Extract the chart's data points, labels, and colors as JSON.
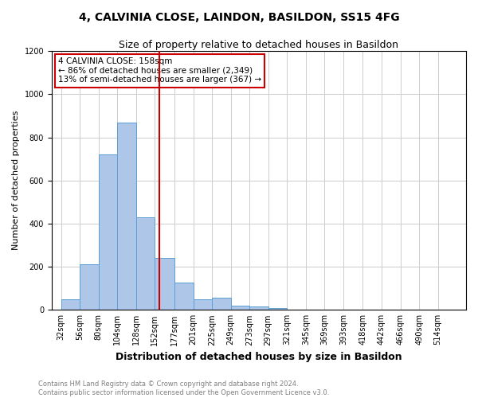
{
  "title": "4, CALVINIA CLOSE, LAINDON, BASILDON, SS15 4FG",
  "subtitle": "Size of property relative to detached houses in Basildon",
  "xlabel": "Distribution of detached houses by size in Basildon",
  "ylabel": "Number of detached properties",
  "footnote1": "Contains HM Land Registry data © Crown copyright and database right 2024.",
  "footnote2": "Contains public sector information licensed under the Open Government Licence v3.0.",
  "bin_labels": [
    "32sqm",
    "56sqm",
    "80sqm",
    "104sqm",
    "128sqm",
    "152sqm",
    "177sqm",
    "201sqm",
    "225sqm",
    "249sqm",
    "273sqm",
    "297sqm",
    "321sqm",
    "345sqm",
    "369sqm",
    "393sqm",
    "418sqm",
    "442sqm",
    "466sqm",
    "490sqm",
    "514sqm"
  ],
  "bin_edges": [
    32,
    56,
    80,
    104,
    128,
    152,
    177,
    201,
    225,
    249,
    273,
    297,
    321,
    345,
    369,
    393,
    418,
    442,
    466,
    490,
    514
  ],
  "heights": [
    50,
    210,
    720,
    870,
    430,
    240,
    125,
    50,
    55,
    20,
    15,
    10,
    0,
    0,
    0,
    0,
    0,
    0,
    0,
    0,
    0
  ],
  "bar_color": "#aec6e8",
  "bar_edge_color": "#5a9fd4",
  "vline_x": 158,
  "vline_color": "#cc0000",
  "annotation_line1": "4 CALVINIA CLOSE: 158sqm",
  "annotation_line2": "← 86% of detached houses are smaller (2,349)",
  "annotation_line3": "13% of semi-detached houses are larger (367) →",
  "annotation_box_color": "#ffffff",
  "annotation_box_edge": "#cc0000",
  "ylim": [
    0,
    1200
  ],
  "yticks": [
    0,
    200,
    400,
    600,
    800,
    1000,
    1200
  ],
  "background_color": "#ffffff",
  "grid_color": "#cccccc",
  "title_fontsize": 10,
  "subtitle_fontsize": 9,
  "ylabel_fontsize": 8,
  "xlabel_fontsize": 9,
  "tick_fontsize": 7,
  "annot_fontsize": 7.5,
  "footnote_fontsize": 6
}
